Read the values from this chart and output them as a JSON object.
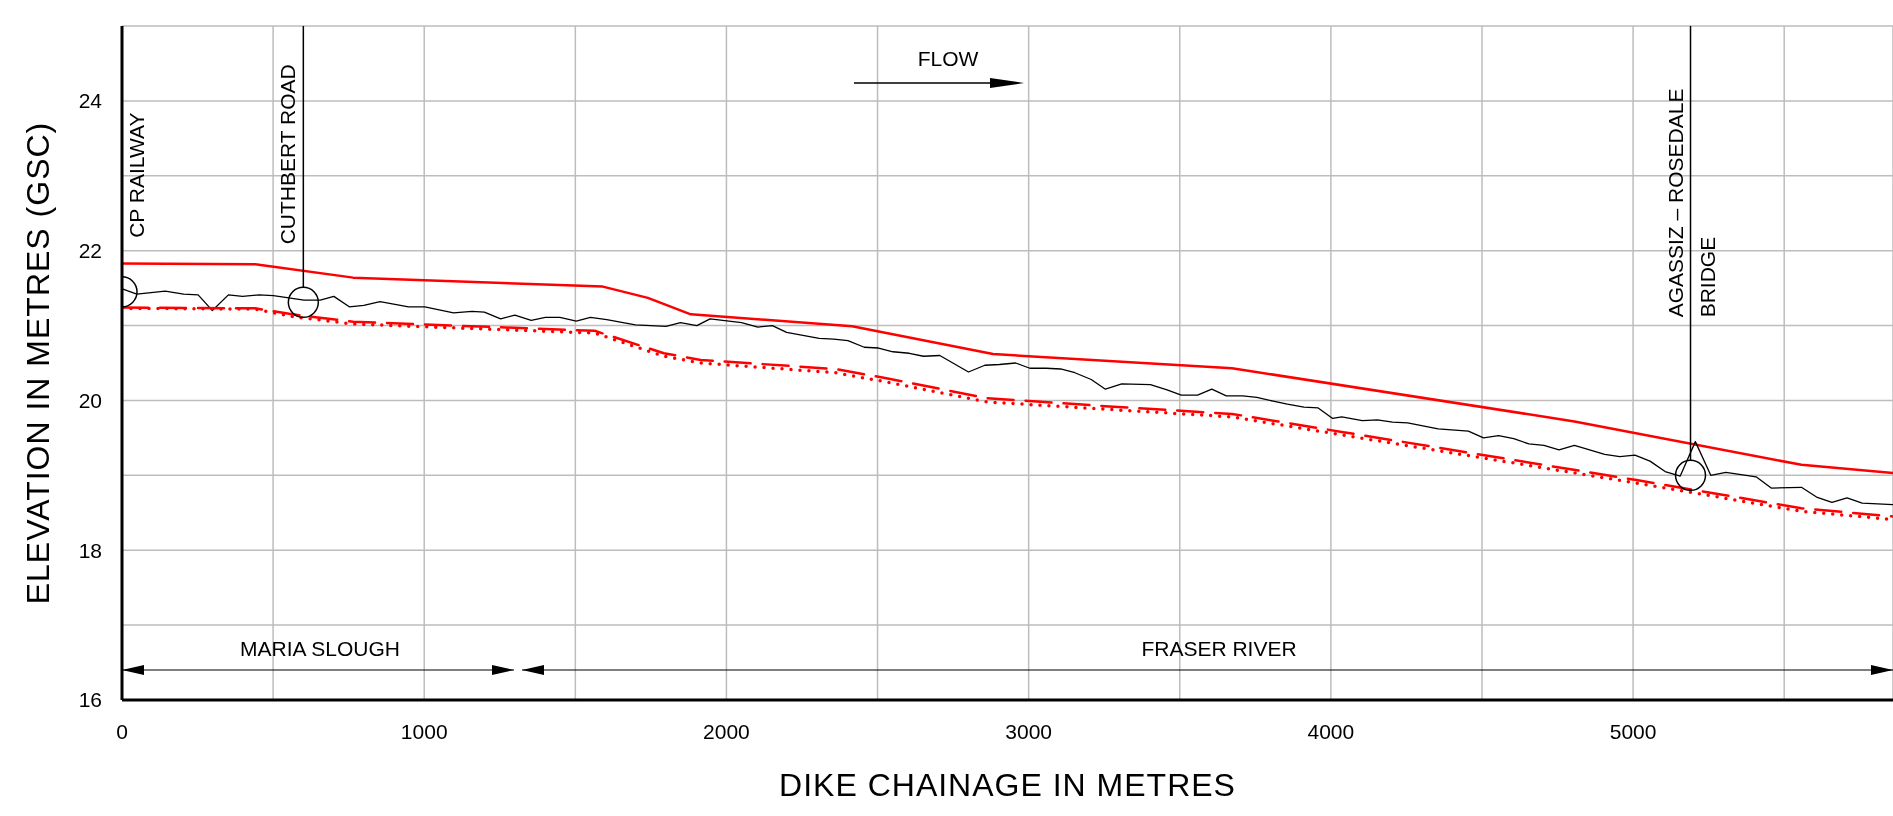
{
  "chart_data": {
    "type": "line",
    "xlabel": "DIKE CHAINAGE IN METRES",
    "ylabel": "ELEVATION IN METRES (GSC)",
    "xlim": [
      0,
      5860
    ],
    "ylim": [
      16,
      25
    ],
    "xticks": [
      0,
      {
        "value": 500,
        "label": null
      },
      1000,
      {
        "value": 1500,
        "label": null
      },
      2000,
      {
        "value": 2500,
        "label": null
      },
      3000,
      {
        "value": 3500,
        "label": null
      },
      4000,
      {
        "value": 4500,
        "label": null
      },
      5000,
      {
        "value": 5500,
        "label": null
      }
    ],
    "yticks": [
      16,
      {
        "value": 17,
        "label": null
      },
      18,
      {
        "value": 19,
        "label": null
      },
      20,
      {
        "value": 21,
        "label": null
      },
      22,
      {
        "value": 23,
        "label": null
      },
      24,
      {
        "value": 25,
        "label": null
      }
    ],
    "grid": true,
    "series": [
      {
        "color": "#ff0000",
        "line_style": "solid",
        "x": [
          0,
          441,
          765,
          1591,
          1740,
          1882,
          2416,
          2882,
          3673,
          4806,
          5557,
          5860
        ],
        "values": [
          21.83,
          21.82,
          21.64,
          21.52,
          21.37,
          21.15,
          20.99,
          20.62,
          20.43,
          19.72,
          19.14,
          19.03
        ]
      },
      {
        "color": "#000000",
        "line_style": "solid",
        "x": [
          1,
          49,
          143,
          204,
          252,
          299,
          352,
          399,
          453,
          501,
          602,
          656,
          701,
          752,
          800,
          854,
          948,
          1002,
          1097,
          1158,
          1199,
          1253,
          1300,
          1354,
          1401,
          1449,
          1503,
          1550,
          1604,
          1658,
          1699,
          1800,
          1848,
          1902,
          1946,
          2050,
          2104,
          2152,
          2199,
          2307,
          2355,
          2402,
          2456,
          2503,
          2551,
          2605,
          2652,
          2706,
          2801,
          2855,
          2903,
          2957,
          3004,
          3058,
          3106,
          3153,
          3207,
          3254,
          3308,
          3403,
          3458,
          3505,
          3559,
          3606,
          3654,
          3708,
          3755,
          3809,
          3856,
          3911,
          3958,
          4006,
          4036,
          4104,
          4154,
          4204,
          4254,
          4355,
          4455,
          4505,
          4555,
          4605,
          4655,
          4705,
          4755,
          4806,
          4906,
          4956,
          5006,
          5056,
          5106,
          5156,
          5206,
          5257,
          5307,
          5407,
          5457,
          5557,
          5607,
          5658,
          5708,
          5758,
          5860
        ],
        "values": [
          21.49,
          21.42,
          21.46,
          21.42,
          21.41,
          21.2,
          21.41,
          21.39,
          21.41,
          21.4,
          21.34,
          21.34,
          21.39,
          21.25,
          21.27,
          21.32,
          21.25,
          21.25,
          21.17,
          21.19,
          21.18,
          21.09,
          21.14,
          21.07,
          21.11,
          21.11,
          21.06,
          21.11,
          21.08,
          21.04,
          21.01,
          20.99,
          21.04,
          21.0,
          21.09,
          21.04,
          20.98,
          21.0,
          20.91,
          20.83,
          20.82,
          20.8,
          20.71,
          20.7,
          20.65,
          20.63,
          20.59,
          20.6,
          20.38,
          20.47,
          20.48,
          20.5,
          20.43,
          20.43,
          20.42,
          20.37,
          20.28,
          20.15,
          20.22,
          20.21,
          20.14,
          20.07,
          20.07,
          20.15,
          20.06,
          20.06,
          20.04,
          19.99,
          19.95,
          19.91,
          19.9,
          19.76,
          19.78,
          19.73,
          19.74,
          19.71,
          19.7,
          19.62,
          19.59,
          19.5,
          19.53,
          19.49,
          19.42,
          19.4,
          19.34,
          19.4,
          19.28,
          19.25,
          19.27,
          19.19,
          19.05,
          18.99,
          19.45,
          19.0,
          19.04,
          18.98,
          18.83,
          18.84,
          18.71,
          18.64,
          18.7,
          18.63,
          18.61
        ]
      },
      {
        "color": "#ff0000",
        "line_style": "dashed",
        "x": [
          0,
          441,
          563,
          765,
          1564,
          1793,
          1915,
          2361,
          2538,
          2862,
          3267,
          3673,
          4036,
          5006,
          5557,
          5860
        ],
        "values": [
          21.24,
          21.23,
          21.15,
          21.05,
          20.93,
          20.63,
          20.54,
          20.42,
          20.29,
          20.03,
          19.92,
          19.82,
          19.58,
          18.94,
          18.56,
          18.45
        ]
      },
      {
        "type": "scatter",
        "color": "#000000",
        "marker": "circle",
        "x": [
          0,
          600,
          5190
        ],
        "values": [
          21.45,
          21.31,
          19.0
        ]
      },
      {
        "color": "#ff0000",
        "line_style": "dotted",
        "x": [
          0,
          441,
          563,
          765,
          1564,
          1793,
          1915,
          2361,
          2538,
          2862,
          3267,
          3673,
          4036,
          5006,
          5557,
          5860
        ],
        "values": [
          21.23,
          21.22,
          21.12,
          21.02,
          20.9,
          20.59,
          20.5,
          20.37,
          20.24,
          19.98,
          19.88,
          19.78,
          19.54,
          18.9,
          18.52,
          18.41
        ]
      }
    ],
    "annotations": [
      {
        "text": "CP RAILWAY",
        "x": 0,
        "y": 21.45
      },
      "FLOW",
      "MARIA SLOUGH",
      "FRASER RIVER"
    ],
    "ref_lines": [
      {
        "axis": "x",
        "value": 600,
        "label": "CUTHBERT ROAD",
        "color": "#000000"
      },
      {
        "axis": "x",
        "value": 5190,
        "label": "AGASSIZ – ROSEDALE\nBRIDGE",
        "color": "#000000"
      }
    ]
  }
}
